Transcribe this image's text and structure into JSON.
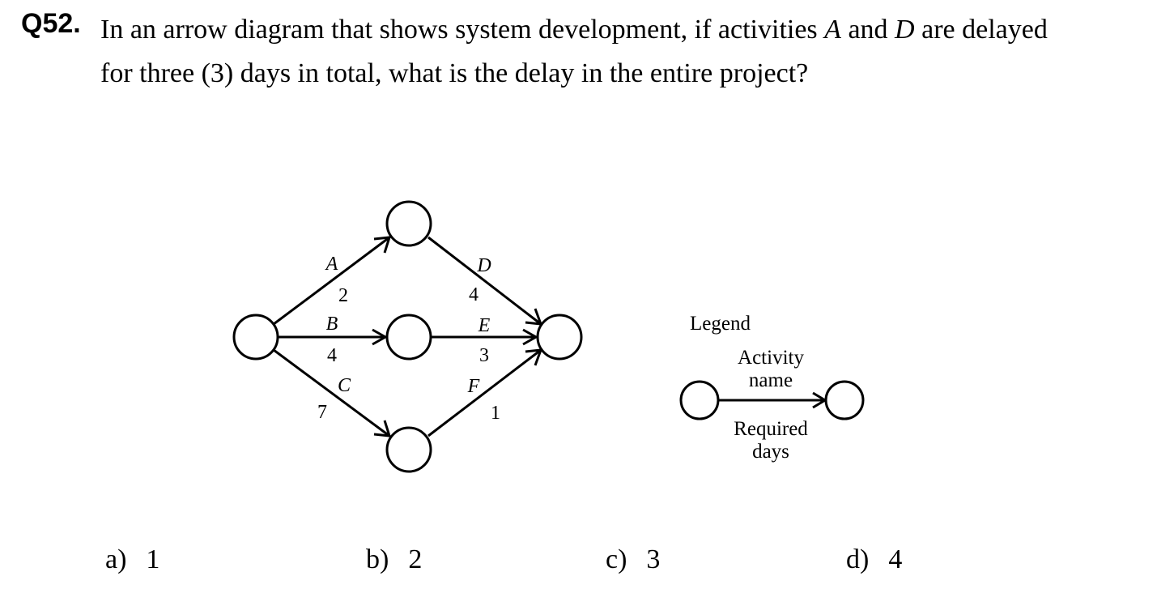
{
  "question": {
    "number": "Q52.",
    "line1_a": "In an arrow diagram that shows system development, if activities ",
    "act1": "A",
    "line1_b": " and ",
    "act2": "D",
    "line1_c": " are delayed",
    "line2": "for three (3) days in total, what is the delay in the entire project?"
  },
  "diagram": {
    "activities": [
      {
        "name": "A",
        "days": "2"
      },
      {
        "name": "B",
        "days": "4"
      },
      {
        "name": "C",
        "days": "7"
      },
      {
        "name": "D",
        "days": "4"
      },
      {
        "name": "E",
        "days": "3"
      },
      {
        "name": "F",
        "days": "1"
      }
    ]
  },
  "legend": {
    "title": "Legend",
    "name_line1": "Activity",
    "name_line2": "name",
    "days_line1": "Required",
    "days_line2": "days"
  },
  "options": [
    {
      "label": "a)",
      "value": "1"
    },
    {
      "label": "b)",
      "value": "2"
    },
    {
      "label": "c)",
      "value": "3"
    },
    {
      "label": "d)",
      "value": "4"
    }
  ]
}
